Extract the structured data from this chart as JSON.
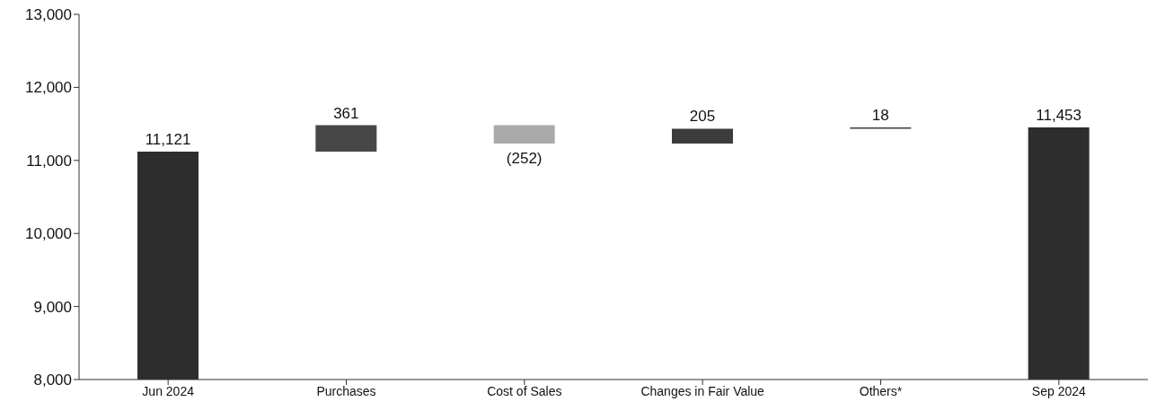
{
  "chart_data": {
    "type": "bar",
    "categories": [
      "Jun 2024",
      "Purchases",
      "Cost of Sales",
      "Changes in Fair Value",
      "Others*",
      "Sep 2024"
    ],
    "values": [
      11121,
      361,
      -252,
      205,
      18,
      11453
    ],
    "base": [
      null,
      11121,
      11482,
      11230,
      11435,
      null
    ],
    "colors": [
      "#2d2d2d",
      "#474747",
      "#aaaaaa",
      "#3c3c3c",
      "#3c3c3c",
      "#2d2d2d"
    ],
    "value_labels": [
      "11,121",
      "361",
      "(252)",
      "205",
      "18",
      "11,453"
    ],
    "ylim": [
      8000,
      13000
    ],
    "yticks": [
      {
        "value": 8000,
        "label": "8,000"
      },
      {
        "value": 9000,
        "label": "9,000"
      },
      {
        "value": 10000,
        "label": "10,000"
      },
      {
        "value": 11000,
        "label": "11,000"
      },
      {
        "value": 12000,
        "label": "12,000"
      },
      {
        "value": 13000,
        "label": "13,000"
      }
    ],
    "grid": false,
    "legend": false
  }
}
